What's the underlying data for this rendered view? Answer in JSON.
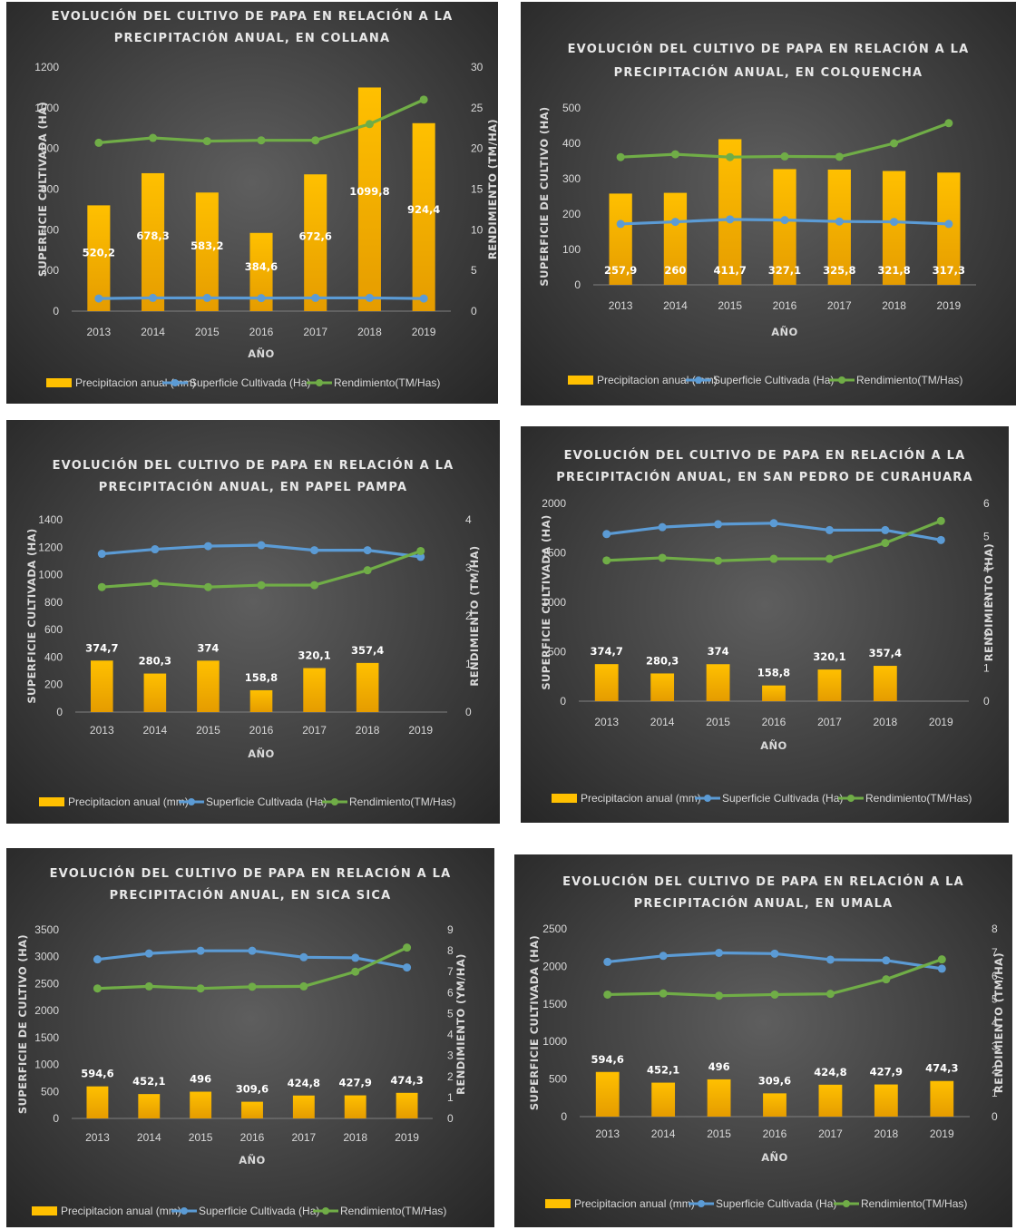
{
  "colors": {
    "precip": "#ffc000",
    "precip_dark": "#e59c00",
    "superficie": "#5b9bd5",
    "rendimiento": "#70ad47",
    "text": "#d9d9d9"
  },
  "chart_data": [
    {
      "type": "bar",
      "title": [
        "EVOLUCIÓN DEL CULTIVO DE PAPA EN RELACIÓN A LA",
        "PRECIPITACIÓN ANUAL, EN COLLANA"
      ],
      "xlabel": "AÑO",
      "ylabel": "SUPERFICIE CULTIVADA (HA)",
      "y2label": "RENDIMIENTO (TM/HA)",
      "categories": [
        "2013",
        "2014",
        "2015",
        "2016",
        "2017",
        "2018",
        "2019"
      ],
      "ylim": [
        0,
        1200
      ],
      "yticks": [
        "0",
        "200",
        "400",
        "600",
        "800",
        "1000",
        "1200"
      ],
      "y2lim": [
        0,
        30
      ],
      "y2ticks": [
        "0",
        "5",
        "10",
        "15",
        "20",
        "25",
        "30"
      ],
      "series": [
        {
          "name": "Precipitacion anual (mm)",
          "kind": "bar",
          "axis": "left",
          "values": [
            520.2,
            678.3,
            583.2,
            384.6,
            672.6,
            1099.8,
            924.4
          ],
          "labels": [
            "520,2",
            "678,3",
            "583,2",
            "384,6",
            "672,6",
            "1099,8",
            "924,4"
          ]
        },
        {
          "name": "Superficie Cultivada (Ha)",
          "kind": "line",
          "axis": "left",
          "values": [
            62,
            65,
            65,
            64,
            65,
            65,
            62
          ]
        },
        {
          "name": "Rendimiento(TM/Has)",
          "kind": "line",
          "axis": "right",
          "values": [
            20.7,
            21.3,
            20.9,
            21.0,
            21.0,
            23.0,
            26.0
          ]
        }
      ],
      "legend": "bottom",
      "label_pos": "inside"
    },
    {
      "type": "bar",
      "title": [
        "EVOLUCIÓN DEL CULTIVO DE PAPA EN RELACIÓN A LA",
        "PRECIPITACIÓN ANUAL, EN COLQUENCHA"
      ],
      "xlabel": "AÑO",
      "ylabel": "SUPERFICIE DE CULTIVO (HA)",
      "y2label": "",
      "categories": [
        "2013",
        "2014",
        "2015",
        "2016",
        "2017",
        "2018",
        "2019"
      ],
      "ylim": [
        0,
        500
      ],
      "yticks": [
        "0",
        "100",
        "200",
        "300",
        "400",
        "500"
      ],
      "series": [
        {
          "name": "Precipitacion anual (mm)",
          "kind": "bar",
          "axis": "left",
          "values": [
            257.9,
            260,
            411.7,
            327.1,
            325.8,
            321.8,
            317.3
          ],
          "labels": [
            "257,9",
            "260",
            "411,7",
            "327,1",
            "325,8",
            "321,8",
            "317,3"
          ]
        },
        {
          "name": "Superficie Cultivada (Ha)",
          "kind": "line",
          "axis": "left",
          "values": [
            172,
            178,
            185,
            183,
            179,
            178,
            172
          ]
        },
        {
          "name": "Rendimiento(TM/Has)",
          "kind": "line",
          "axis": "left",
          "values": [
            361,
            369,
            361,
            363,
            362,
            400,
            457
          ]
        }
      ],
      "legend": "bottom",
      "label_pos": "base"
    },
    {
      "type": "bar",
      "title": [
        "EVOLUCIÓN DEL CULTIVO DE PAPA EN RELACIÓN A LA",
        "PRECIPITACIÓN ANUAL, EN PAPEL PAMPA"
      ],
      "xlabel": "AÑO",
      "ylabel": "SUPERFICIE CULTIVADA (HA)",
      "y2label": "RENDIMIENTO (TM/HA)",
      "categories": [
        "2013",
        "2014",
        "2015",
        "2016",
        "2017",
        "2018",
        "2019"
      ],
      "ylim": [
        0,
        1400
      ],
      "yticks": [
        "0",
        "200",
        "400",
        "600",
        "800",
        "1000",
        "1200",
        "1400"
      ],
      "y2lim": [
        0,
        4
      ],
      "y2ticks": [
        "0",
        "1",
        "2",
        "3",
        "4"
      ],
      "series": [
        {
          "name": "Precipitacion anual (mm)",
          "kind": "bar",
          "axis": "left",
          "values": [
            374.7,
            280.3,
            374,
            158.8,
            320.1,
            357.4,
            null
          ],
          "labels": [
            "374,7",
            "280,3",
            "374",
            "158,8",
            "320,1",
            "357,4",
            ""
          ]
        },
        {
          "name": "Superficie Cultivada (Ha)",
          "kind": "line",
          "axis": "left",
          "values": [
            1152,
            1185,
            1208,
            1215,
            1178,
            1178,
            1130
          ]
        },
        {
          "name": "Rendimiento(TM/Has)",
          "kind": "line",
          "axis": "right",
          "values": [
            2.6,
            2.68,
            2.6,
            2.64,
            2.64,
            2.95,
            3.35
          ]
        }
      ],
      "legend": "bottom",
      "label_pos": "above"
    },
    {
      "type": "bar",
      "title": [
        "EVOLUCIÓN DEL CULTIVO DE PAPA EN RELACIÓN A LA",
        "PRECIPITACIÓN ANUAL, EN SAN PEDRO DE CURAHUARA"
      ],
      "xlabel": "AÑO",
      "ylabel": "SUPERFICIE CULTIVADA (HA)",
      "y2label": "RENDIMIENTO (HA)",
      "categories": [
        "2013",
        "2014",
        "2015",
        "2016",
        "2017",
        "2018",
        "2019"
      ],
      "ylim": [
        0,
        2000
      ],
      "yticks": [
        "0",
        "500",
        "1000",
        "1500",
        "2000"
      ],
      "y2lim": [
        0,
        6
      ],
      "y2ticks": [
        "0",
        "1",
        "2",
        "3",
        "4",
        "5",
        "6"
      ],
      "series": [
        {
          "name": "Precipitacion anual (mm)",
          "kind": "bar",
          "axis": "left",
          "values": [
            374.7,
            280.3,
            374,
            158.8,
            320.1,
            357.4,
            null
          ],
          "labels": [
            "374,7",
            "280,3",
            "374",
            "158,8",
            "320,1",
            "357,4",
            ""
          ]
        },
        {
          "name": "Superficie Cultivada (Ha)",
          "kind": "line",
          "axis": "left",
          "values": [
            1690,
            1760,
            1790,
            1800,
            1730,
            1730,
            1630
          ]
        },
        {
          "name": "Rendimiento(TM/Has)",
          "kind": "line",
          "axis": "right",
          "values": [
            4.27,
            4.35,
            4.26,
            4.32,
            4.32,
            4.8,
            5.47
          ]
        }
      ],
      "legend": "bottom",
      "label_pos": "above"
    },
    {
      "type": "bar",
      "title": [
        "EVOLUCIÓN DEL CULTIVO DE PAPA EN RELACIÓN A LA",
        "PRECIPITACIÓN ANUAL, EN SICA SICA"
      ],
      "xlabel": "AÑO",
      "ylabel": "SUPERFICIE DE CULTIVO (HA)",
      "y2label": "RENDIMIENTO (YM/HA)",
      "categories": [
        "2013",
        "2014",
        "2015",
        "2016",
        "2017",
        "2018",
        "2019"
      ],
      "ylim": [
        0,
        3500
      ],
      "yticks": [
        "0",
        "500",
        "1000",
        "1500",
        "2000",
        "2500",
        "3000",
        "3500"
      ],
      "y2lim": [
        0,
        9
      ],
      "y2ticks": [
        "0",
        "1",
        "2",
        "3",
        "4",
        "5",
        "6",
        "7",
        "8",
        "9"
      ],
      "series": [
        {
          "name": "Precipitacion anual (mm)",
          "kind": "bar",
          "axis": "left",
          "values": [
            594.6,
            452.1,
            496,
            309.6,
            424.8,
            427.9,
            474.3
          ],
          "labels": [
            "594,6",
            "452,1",
            "496",
            "309,6",
            "424,8",
            "427,9",
            "474,3"
          ]
        },
        {
          "name": "Superficie Cultivada (Ha)",
          "kind": "line",
          "axis": "left",
          "values": [
            2950,
            3060,
            3110,
            3110,
            2990,
            2980,
            2800
          ]
        },
        {
          "name": "Rendimiento(TM/Has)",
          "kind": "line",
          "axis": "right",
          "values": [
            6.2,
            6.3,
            6.2,
            6.28,
            6.3,
            7.0,
            8.15
          ]
        }
      ],
      "legend": "bottom",
      "label_pos": "above"
    },
    {
      "type": "bar",
      "title": [
        "EVOLUCIÓN DEL CULTIVO DE PAPA EN RELACIÓN A LA",
        "PRECIPITACIÓN ANUAL, EN UMALA"
      ],
      "xlabel": "AÑO",
      "ylabel": "SUPERFICIE CULTIVADA (HA)",
      "y2label": "RENDIMIENTO (TM/HA)",
      "categories": [
        "2013",
        "2014",
        "2015",
        "2016",
        "2017",
        "2018",
        "2019"
      ],
      "ylim": [
        0,
        2500
      ],
      "yticks": [
        "0",
        "500",
        "1000",
        "1500",
        "2000",
        "2500"
      ],
      "y2lim": [
        0,
        8
      ],
      "y2ticks": [
        "0",
        "1",
        "2",
        "3",
        "4",
        "5",
        "6",
        "7",
        "8"
      ],
      "series": [
        {
          "name": "Precipitacion anual (mm)",
          "kind": "bar",
          "axis": "left",
          "values": [
            594.6,
            452.1,
            496,
            309.6,
            424.8,
            427.9,
            474.3
          ],
          "labels": [
            "594,6",
            "452,1",
            "496",
            "309,6",
            "424,8",
            "427,9",
            "474,3"
          ]
        },
        {
          "name": "Superficie Cultivada (Ha)",
          "kind": "line",
          "axis": "left",
          "values": [
            2060,
            2140,
            2180,
            2170,
            2090,
            2080,
            1970
          ]
        },
        {
          "name": "Rendimiento(TM/Has)",
          "kind": "line",
          "axis": "right",
          "values": [
            5.2,
            5.25,
            5.15,
            5.2,
            5.23,
            5.85,
            6.7
          ]
        }
      ],
      "legend": "bottom",
      "label_pos": "above"
    }
  ]
}
